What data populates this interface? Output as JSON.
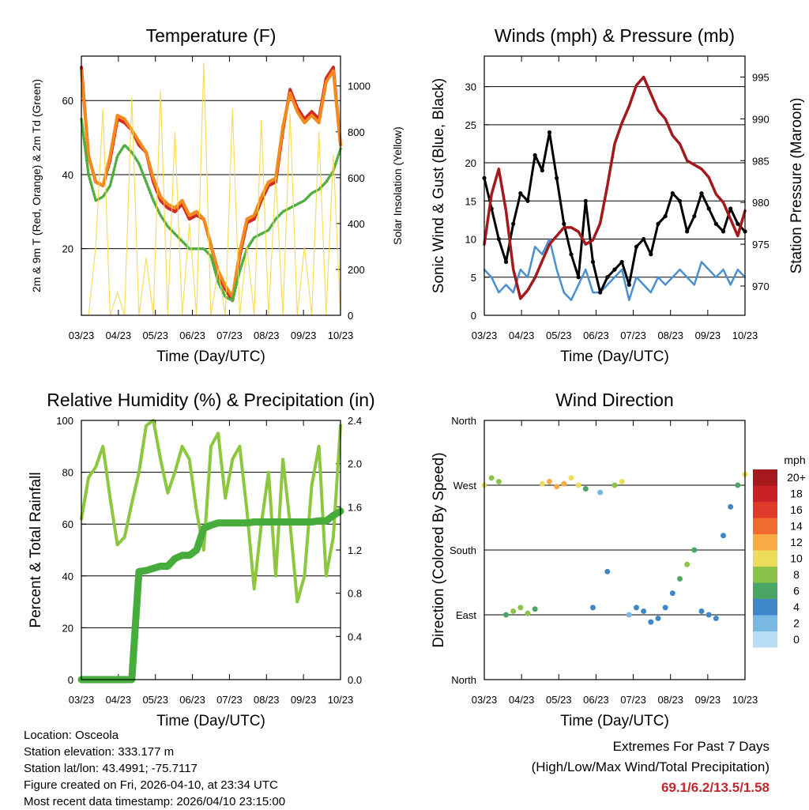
{
  "chart_data": [
    {
      "type": "line",
      "title": "Temperature (F)",
      "xlabel": "Time (Day/UTC)",
      "ylabel": "2m & 9m T (Red, Orange) & 2m Td (Green)",
      "ylabel_right": "Solar Insolation (Yellow)",
      "x_ticks": [
        "03/23",
        "04/23",
        "05/23",
        "06/23",
        "07/23",
        "08/23",
        "09/23",
        "10/23"
      ],
      "y_ticks": [
        "20",
        "40",
        "60"
      ],
      "y_range": [
        2,
        72
      ],
      "y_right_ticks": [
        "0",
        "200",
        "400",
        "600",
        "800",
        "1000"
      ],
      "y_right_range": [
        0,
        1130
      ],
      "series": [
        {
          "name": "2m T",
          "color": "#d42a24",
          "values": [
            69,
            45,
            38,
            37,
            44,
            55,
            54,
            52,
            48,
            46,
            38,
            33,
            31,
            30,
            32,
            28,
            29,
            28,
            21,
            13,
            9,
            6,
            18,
            27,
            28,
            33,
            37,
            38,
            52,
            63,
            58,
            55,
            57,
            55,
            66,
            69,
            48
          ]
        },
        {
          "name": "9m T",
          "color": "#f28a1e",
          "values": [
            68,
            45,
            38,
            37,
            45,
            56,
            55,
            52,
            49,
            46,
            39,
            34,
            32,
            31,
            33,
            29,
            30,
            28,
            21,
            14,
            10,
            7,
            19,
            28,
            29,
            34,
            38,
            39,
            53,
            62,
            57,
            54,
            56,
            54,
            65,
            68,
            48
          ]
        },
        {
          "name": "2m Td",
          "color": "#4fae3f",
          "values": [
            55,
            40,
            33,
            34,
            37,
            45,
            48,
            46,
            43,
            38,
            33,
            29,
            26,
            24,
            22,
            20,
            20,
            20,
            18,
            11,
            7,
            6,
            14,
            20,
            23,
            24,
            25,
            28,
            30,
            31,
            32,
            33,
            35,
            36,
            38,
            41,
            47
          ]
        },
        {
          "name": "Solar Insolation",
          "color": "#f7d948",
          "axis": "right",
          "values": [
            0,
            0,
            300,
            900,
            0,
            100,
            0,
            950,
            0,
            250,
            0,
            980,
            0,
            800,
            0,
            400,
            0,
            1100,
            0,
            200,
            0,
            900,
            0,
            300,
            0,
            850,
            0,
            600,
            0,
            880,
            0,
            300,
            0,
            800,
            0,
            700,
            0
          ]
        }
      ]
    },
    {
      "type": "scatter",
      "title": "Winds (mph) & Pressure (mb)",
      "xlabel": "Time (Day/UTC)",
      "ylabel": "Sonic Wind & Gust (Blue, Black)",
      "ylabel_right": "Station Pressure (Maroon)",
      "x_ticks": [
        "03/23",
        "04/23",
        "05/23",
        "06/23",
        "07/23",
        "08/23",
        "09/23",
        "10/23"
      ],
      "y_ticks": [
        "0",
        "5",
        "10",
        "15",
        "20",
        "25",
        "30"
      ],
      "y_range": [
        0,
        34
      ],
      "y_right_ticks": [
        "970",
        "975",
        "980",
        "985",
        "990",
        "995"
      ],
      "y_right_range": [
        966.5,
        997.5
      ],
      "series": [
        {
          "name": "Sonic Wind",
          "color": "#4a90d0",
          "values": [
            6,
            5,
            3,
            4,
            3,
            6,
            5,
            9,
            8,
            10,
            6,
            3,
            2,
            4,
            6,
            3,
            3,
            4,
            5,
            6,
            2,
            5,
            4,
            3,
            5,
            4,
            5,
            6,
            5,
            4,
            7,
            6,
            5,
            6,
            4,
            6,
            5
          ]
        },
        {
          "name": "Gust",
          "color": "#000000",
          "values": [
            18,
            14,
            10,
            7,
            12,
            16,
            15,
            21,
            19,
            24,
            18,
            12,
            8,
            5,
            15,
            7,
            3,
            5,
            6,
            7,
            4,
            9,
            10,
            8,
            12,
            13,
            16,
            15,
            11,
            13,
            16,
            14,
            12,
            11,
            14,
            12,
            11
          ]
        },
        {
          "name": "Station Pressure",
          "color": "#a31a1e",
          "axis": "right",
          "values": [
            975,
            981,
            984,
            979,
            972,
            968.5,
            969.5,
            971,
            973,
            975,
            976,
            977,
            977,
            976.5,
            975,
            975.5,
            977.5,
            982,
            987,
            989.5,
            991.5,
            994,
            995,
            993,
            991,
            990,
            988,
            987,
            985,
            984.5,
            984,
            983,
            981,
            980,
            978,
            976,
            979
          ]
        }
      ]
    },
    {
      "type": "line",
      "title": "Relative Humidity (%) & Precipitation (in)",
      "xlabel": "Time (Day/UTC)",
      "ylabel": "Percent & Total Rainfall",
      "x_ticks": [
        "03/23",
        "04/23",
        "05/23",
        "06/23",
        "07/23",
        "08/23",
        "09/23",
        "10/23"
      ],
      "y_ticks": [
        "0",
        "20",
        "40",
        "60",
        "80",
        "100"
      ],
      "y_range": [
        0,
        100
      ],
      "y_right_ticks": [
        "0.0",
        "0.4",
        "0.8",
        "1.2",
        "1.6",
        "2.0",
        "2.4"
      ],
      "y_right_range": [
        0,
        2.4
      ],
      "series": [
        {
          "name": "Relative Humidity",
          "color": "#8dc63f",
          "values": [
            62,
            78,
            82,
            90,
            70,
            52,
            55,
            68,
            80,
            98,
            100,
            85,
            72,
            80,
            90,
            85,
            65,
            50,
            90,
            95,
            70,
            85,
            90,
            65,
            35,
            60,
            80,
            40,
            85,
            60,
            30,
            40,
            75,
            90,
            40,
            55,
            98
          ]
        },
        {
          "name": "Total Rainfall",
          "color": "#46ad3c",
          "axis": "right",
          "values": [
            0,
            0,
            0,
            0,
            0,
            0,
            0,
            0,
            1.0,
            1.01,
            1.03,
            1.05,
            1.05,
            1.12,
            1.15,
            1.15,
            1.2,
            1.4,
            1.43,
            1.45,
            1.45,
            1.45,
            1.45,
            1.45,
            1.46,
            1.46,
            1.46,
            1.46,
            1.46,
            1.46,
            1.46,
            1.46,
            1.46,
            1.47,
            1.47,
            1.52,
            1.56
          ]
        }
      ]
    },
    {
      "type": "scatter",
      "title": "Wind Direction",
      "xlabel": "Time (Day/UTC)",
      "ylabel": "Direction (Colored By Speed)",
      "x_ticks": [
        "03/23",
        "04/23",
        "05/23",
        "06/23",
        "07/23",
        "08/23",
        "09/23",
        "10/23"
      ],
      "y_ticks": [
        "North",
        "East",
        "South",
        "West",
        "North"
      ],
      "y_range": [
        0,
        360
      ],
      "legend": {
        "title": "mph",
        "labels": [
          "20+",
          "18",
          "16",
          "14",
          "12",
          "10",
          "8",
          "6",
          "4",
          "2",
          "0"
        ],
        "colors": [
          "#a6191d",
          "#cb2027",
          "#e0392b",
          "#f26b2e",
          "#fbab45",
          "#eddd5c",
          "#8bc34a",
          "#4ba564",
          "#3f87c6",
          "#7ab8e4",
          "#b8ddf4"
        ]
      },
      "series": [
        {
          "name": "Direction",
          "values": [
            270,
            280,
            275,
            90,
            95,
            100,
            92,
            98,
            272,
            275,
            268,
            272,
            280,
            270,
            265,
            100,
            260,
            150,
            270,
            275,
            90,
            100,
            95,
            80,
            85,
            100,
            120,
            140,
            160,
            180,
            95,
            90,
            85,
            200,
            240,
            270,
            285
          ]
        },
        {
          "name": "Speed",
          "values": [
            9,
            8,
            7,
            6,
            7,
            8,
            7,
            6,
            10,
            12,
            11,
            12,
            10,
            9,
            6,
            3,
            2,
            4,
            8,
            10,
            2,
            3,
            3,
            4,
            4,
            3,
            4,
            5,
            7,
            6,
            3,
            3,
            3,
            4,
            4,
            5,
            9
          ]
        }
      ]
    }
  ],
  "footer": {
    "location": "Location: Osceola",
    "elevation": "Station elevation: 333.177 m",
    "latlon": "Station lat/lon: 43.4991; -75.7117",
    "created": "Figure created on Fri, 2026-04-10, at 23:34 UTC",
    "recent": "Most recent data timestamp: 2026/04/10 23:15:00",
    "extremes_title": "Extremes For Past 7 Days",
    "extremes_sub": "(High/Low/Max Wind/Total Precipitation)",
    "extremes_values": "69.1/6.2/13.5/1.58"
  }
}
